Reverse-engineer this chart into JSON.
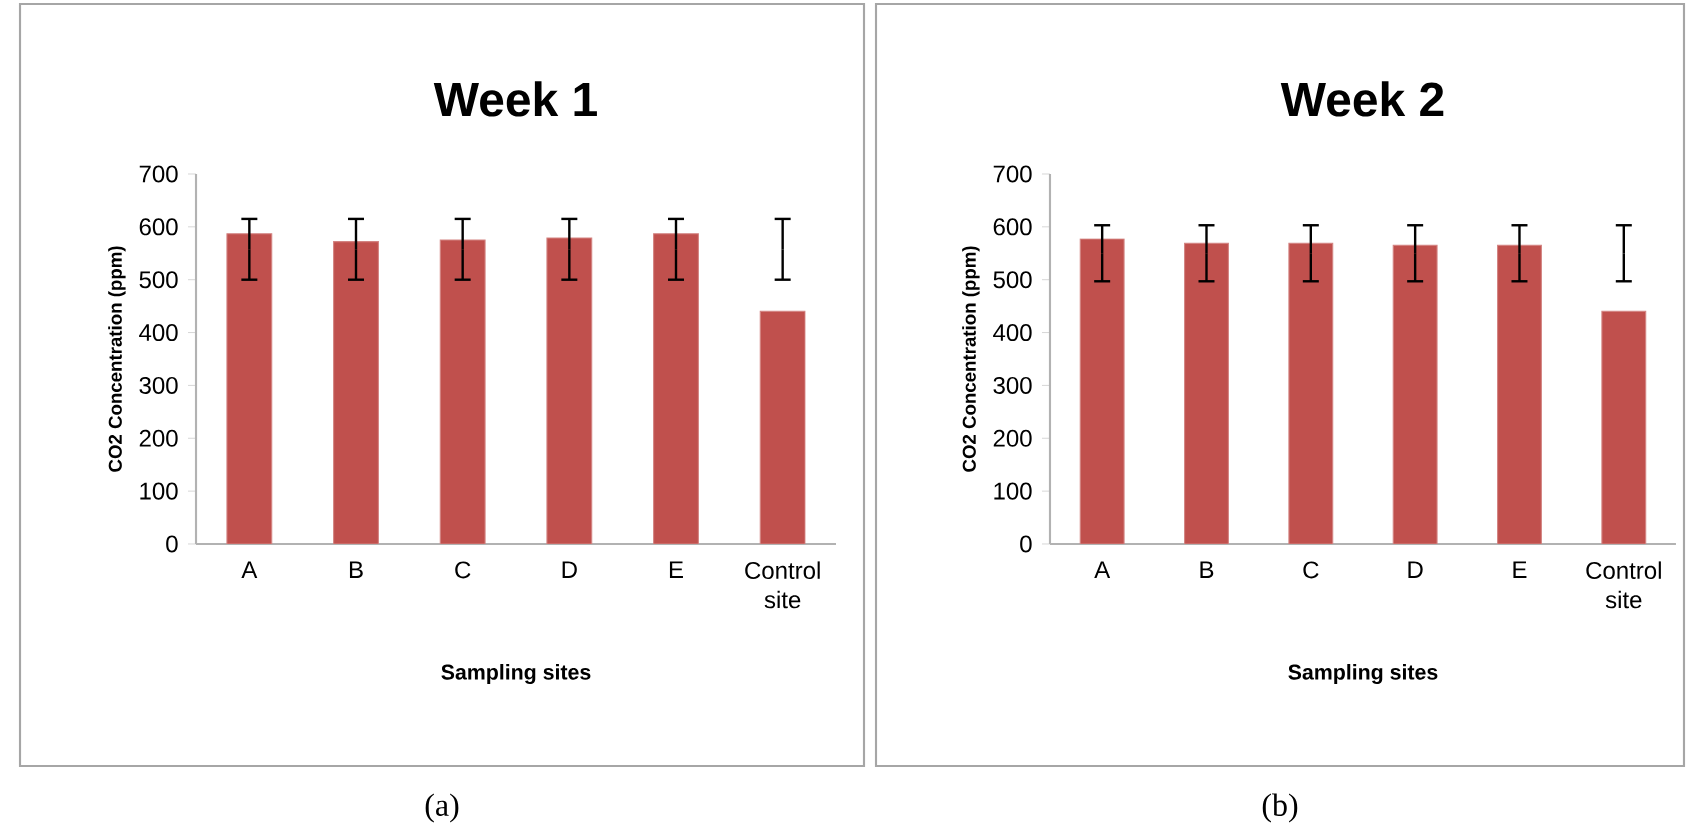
{
  "chart_data": [
    {
      "type": "bar",
      "title": "Week 1",
      "xlabel": "Sampling sites",
      "ylabel": "CO2 Concentration (ppm)",
      "categories": [
        "A",
        "B",
        "C",
        "D",
        "E",
        "Control site"
      ],
      "values": [
        587,
        572,
        575,
        579,
        587,
        440
      ],
      "errors": [
        [
          500,
          615
        ],
        [
          500,
          615
        ],
        [
          500,
          615
        ],
        [
          500,
          615
        ],
        [
          500,
          615
        ],
        [
          500,
          615
        ]
      ],
      "color": "#c0504d",
      "ylim": [
        0,
        700
      ],
      "yticks": [
        0,
        100,
        200,
        300,
        400,
        500,
        600,
        700
      ],
      "annotations": [
        "(a)"
      ]
    },
    {
      "type": "bar",
      "title": "Week 2",
      "xlabel": "Sampling sites",
      "ylabel": "CO2 Concentration (ppm)",
      "categories": [
        "A",
        "B",
        "C",
        "D",
        "E",
        "Control site"
      ],
      "values": [
        577,
        569,
        569,
        565,
        565,
        440
      ],
      "errors": [
        [
          497,
          603
        ],
        [
          497,
          603
        ],
        [
          497,
          603
        ],
        [
          497,
          603
        ],
        [
          497,
          603
        ],
        [
          497,
          603
        ]
      ],
      "color": "#c0504d",
      "ylim": [
        0,
        700
      ],
      "yticks": [
        0,
        100,
        200,
        300,
        400,
        500,
        600,
        700
      ],
      "annotations": [
        "(b)"
      ]
    }
  ]
}
